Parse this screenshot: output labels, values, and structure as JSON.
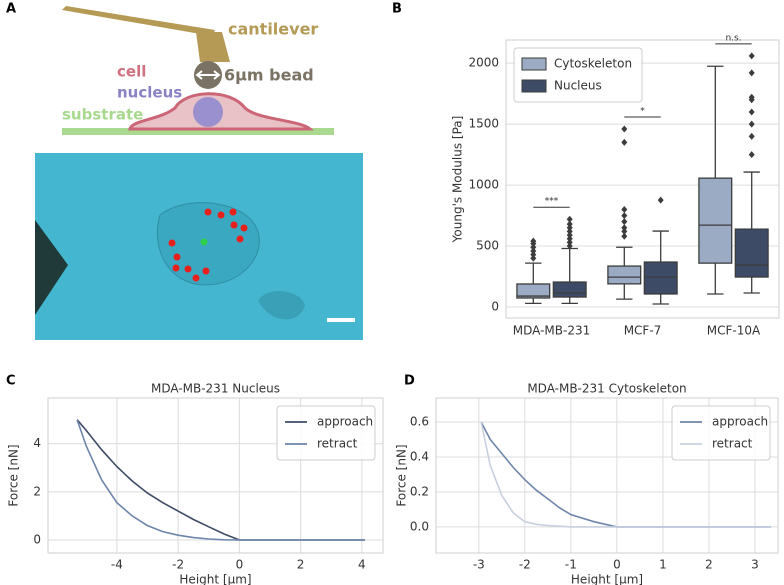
{
  "diagram": {
    "panel": "A",
    "labels": {
      "cantilever": "cantilever",
      "bead": "6μm bead",
      "cell": "cell",
      "nucleus": "nucleus",
      "substrate": "substrate"
    }
  },
  "chart_data": [
    {
      "panel": "B",
      "type": "box",
      "ylabel": "Young's Modulus [Pa]",
      "categories": [
        "MDA-MB-231",
        "MCF-7",
        "MCF-10A"
      ],
      "annotations": [
        "***",
        "*",
        "n.s."
      ],
      "ylim": [
        -90,
        2190
      ],
      "yticks": [
        0,
        500,
        1000,
        1500,
        2000
      ],
      "grid": "y",
      "legend": "upper left",
      "series": [
        {
          "name": "Cytoskeleton",
          "color": "#9aabc3",
          "boxes": [
            {
              "whislo": 30,
              "q1": 74,
              "med": 90,
              "q3": 189,
              "whishi": 360,
              "fliers": [
                400,
                430,
                460,
                490,
                520,
                540
              ]
            },
            {
              "whislo": 65,
              "q1": 190,
              "med": 245,
              "q3": 336,
              "whishi": 490,
              "fliers": [
                580,
                620,
                650,
                700,
                750,
                800,
                1350,
                1460
              ]
            },
            {
              "whislo": 107,
              "q1": 360,
              "med": 672,
              "q3": 1057,
              "whishi": 1975,
              "fliers": []
            }
          ]
        },
        {
          "name": "Nucleus",
          "color": "#3d4b66",
          "boxes": [
            {
              "whislo": 30,
              "q1": 82,
              "med": 115,
              "q3": 205,
              "whishi": 480,
              "fliers": [
                500,
                530,
                560,
                590,
                620,
                650,
                680,
                720
              ]
            },
            {
              "whislo": 25,
              "q1": 107,
              "med": 245,
              "q3": 369,
              "whishi": 623,
              "fliers": [
                877
              ]
            },
            {
              "whislo": 115,
              "q1": 246,
              "med": 344,
              "q3": 639,
              "whishi": 1107,
              "fliers": [
                1250,
                1400,
                1500,
                1600,
                1700,
                1720,
                1920,
                2060
              ]
            }
          ]
        }
      ]
    },
    {
      "panel": "C",
      "type": "line",
      "title": "MDA-MB-231 Nucleus",
      "xlabel": "Height [μm]",
      "ylabel": "Force [nN]",
      "x": [
        -5.3,
        -5,
        -4.5,
        -4,
        -3.5,
        -3,
        -2.5,
        -2,
        -1.5,
        -1,
        -0.5,
        0,
        1,
        2,
        3,
        4.1
      ],
      "xlim": [
        -6.25,
        4.69
      ],
      "xticks": [
        -4,
        -2,
        0,
        2,
        4
      ],
      "ylim": [
        -0.54,
        5.9
      ],
      "yticks": [
        0,
        2,
        4
      ],
      "grid": "both",
      "legend": "upper right",
      "series": [
        {
          "name": "approach",
          "color": "#3d4b66",
          "values": [
            5.0,
            4.55,
            3.75,
            3.05,
            2.45,
            1.95,
            1.55,
            1.2,
            0.85,
            0.55,
            0.25,
            0,
            0,
            0,
            0,
            0
          ]
        },
        {
          "name": "retract",
          "color": "#6e86ac",
          "values": [
            5.0,
            3.9,
            2.5,
            1.55,
            1.0,
            0.6,
            0.35,
            0.2,
            0.1,
            0.04,
            0.01,
            0,
            0,
            0,
            0,
            0
          ]
        }
      ]
    },
    {
      "panel": "D",
      "type": "line",
      "title": "MDA-MB-231 Cytoskeleton",
      "xlabel": "Height [μm]",
      "ylabel": "Force [nN]",
      "x": [
        -2.95,
        -2.75,
        -2.5,
        -2.25,
        -2,
        -1.75,
        -1.5,
        -1.25,
        -1,
        -0.5,
        0,
        1,
        2,
        3,
        3.35
      ],
      "xlim": [
        -3.93,
        3.5
      ],
      "xticks": [
        -3,
        -2,
        -1,
        0,
        1,
        2,
        3
      ],
      "ylim": [
        -0.149,
        0.737
      ],
      "yticks": [
        {
          "value": 0,
          "label": "0.0"
        },
        0.2,
        0.4,
        0.6
      ],
      "grid": "both",
      "legend": "upper right",
      "series": [
        {
          "name": "approach",
          "color": "#6e86ac",
          "values": [
            0.6,
            0.5,
            0.42,
            0.34,
            0.27,
            0.21,
            0.16,
            0.11,
            0.07,
            0.03,
            0,
            0,
            0,
            0,
            0
          ]
        },
        {
          "name": "retract",
          "color": "#c8d0e0",
          "values": [
            0.6,
            0.35,
            0.18,
            0.08,
            0.03,
            0.015,
            0.008,
            0.004,
            0,
            0,
            0,
            0,
            0,
            0,
            0
          ]
        }
      ]
    }
  ]
}
